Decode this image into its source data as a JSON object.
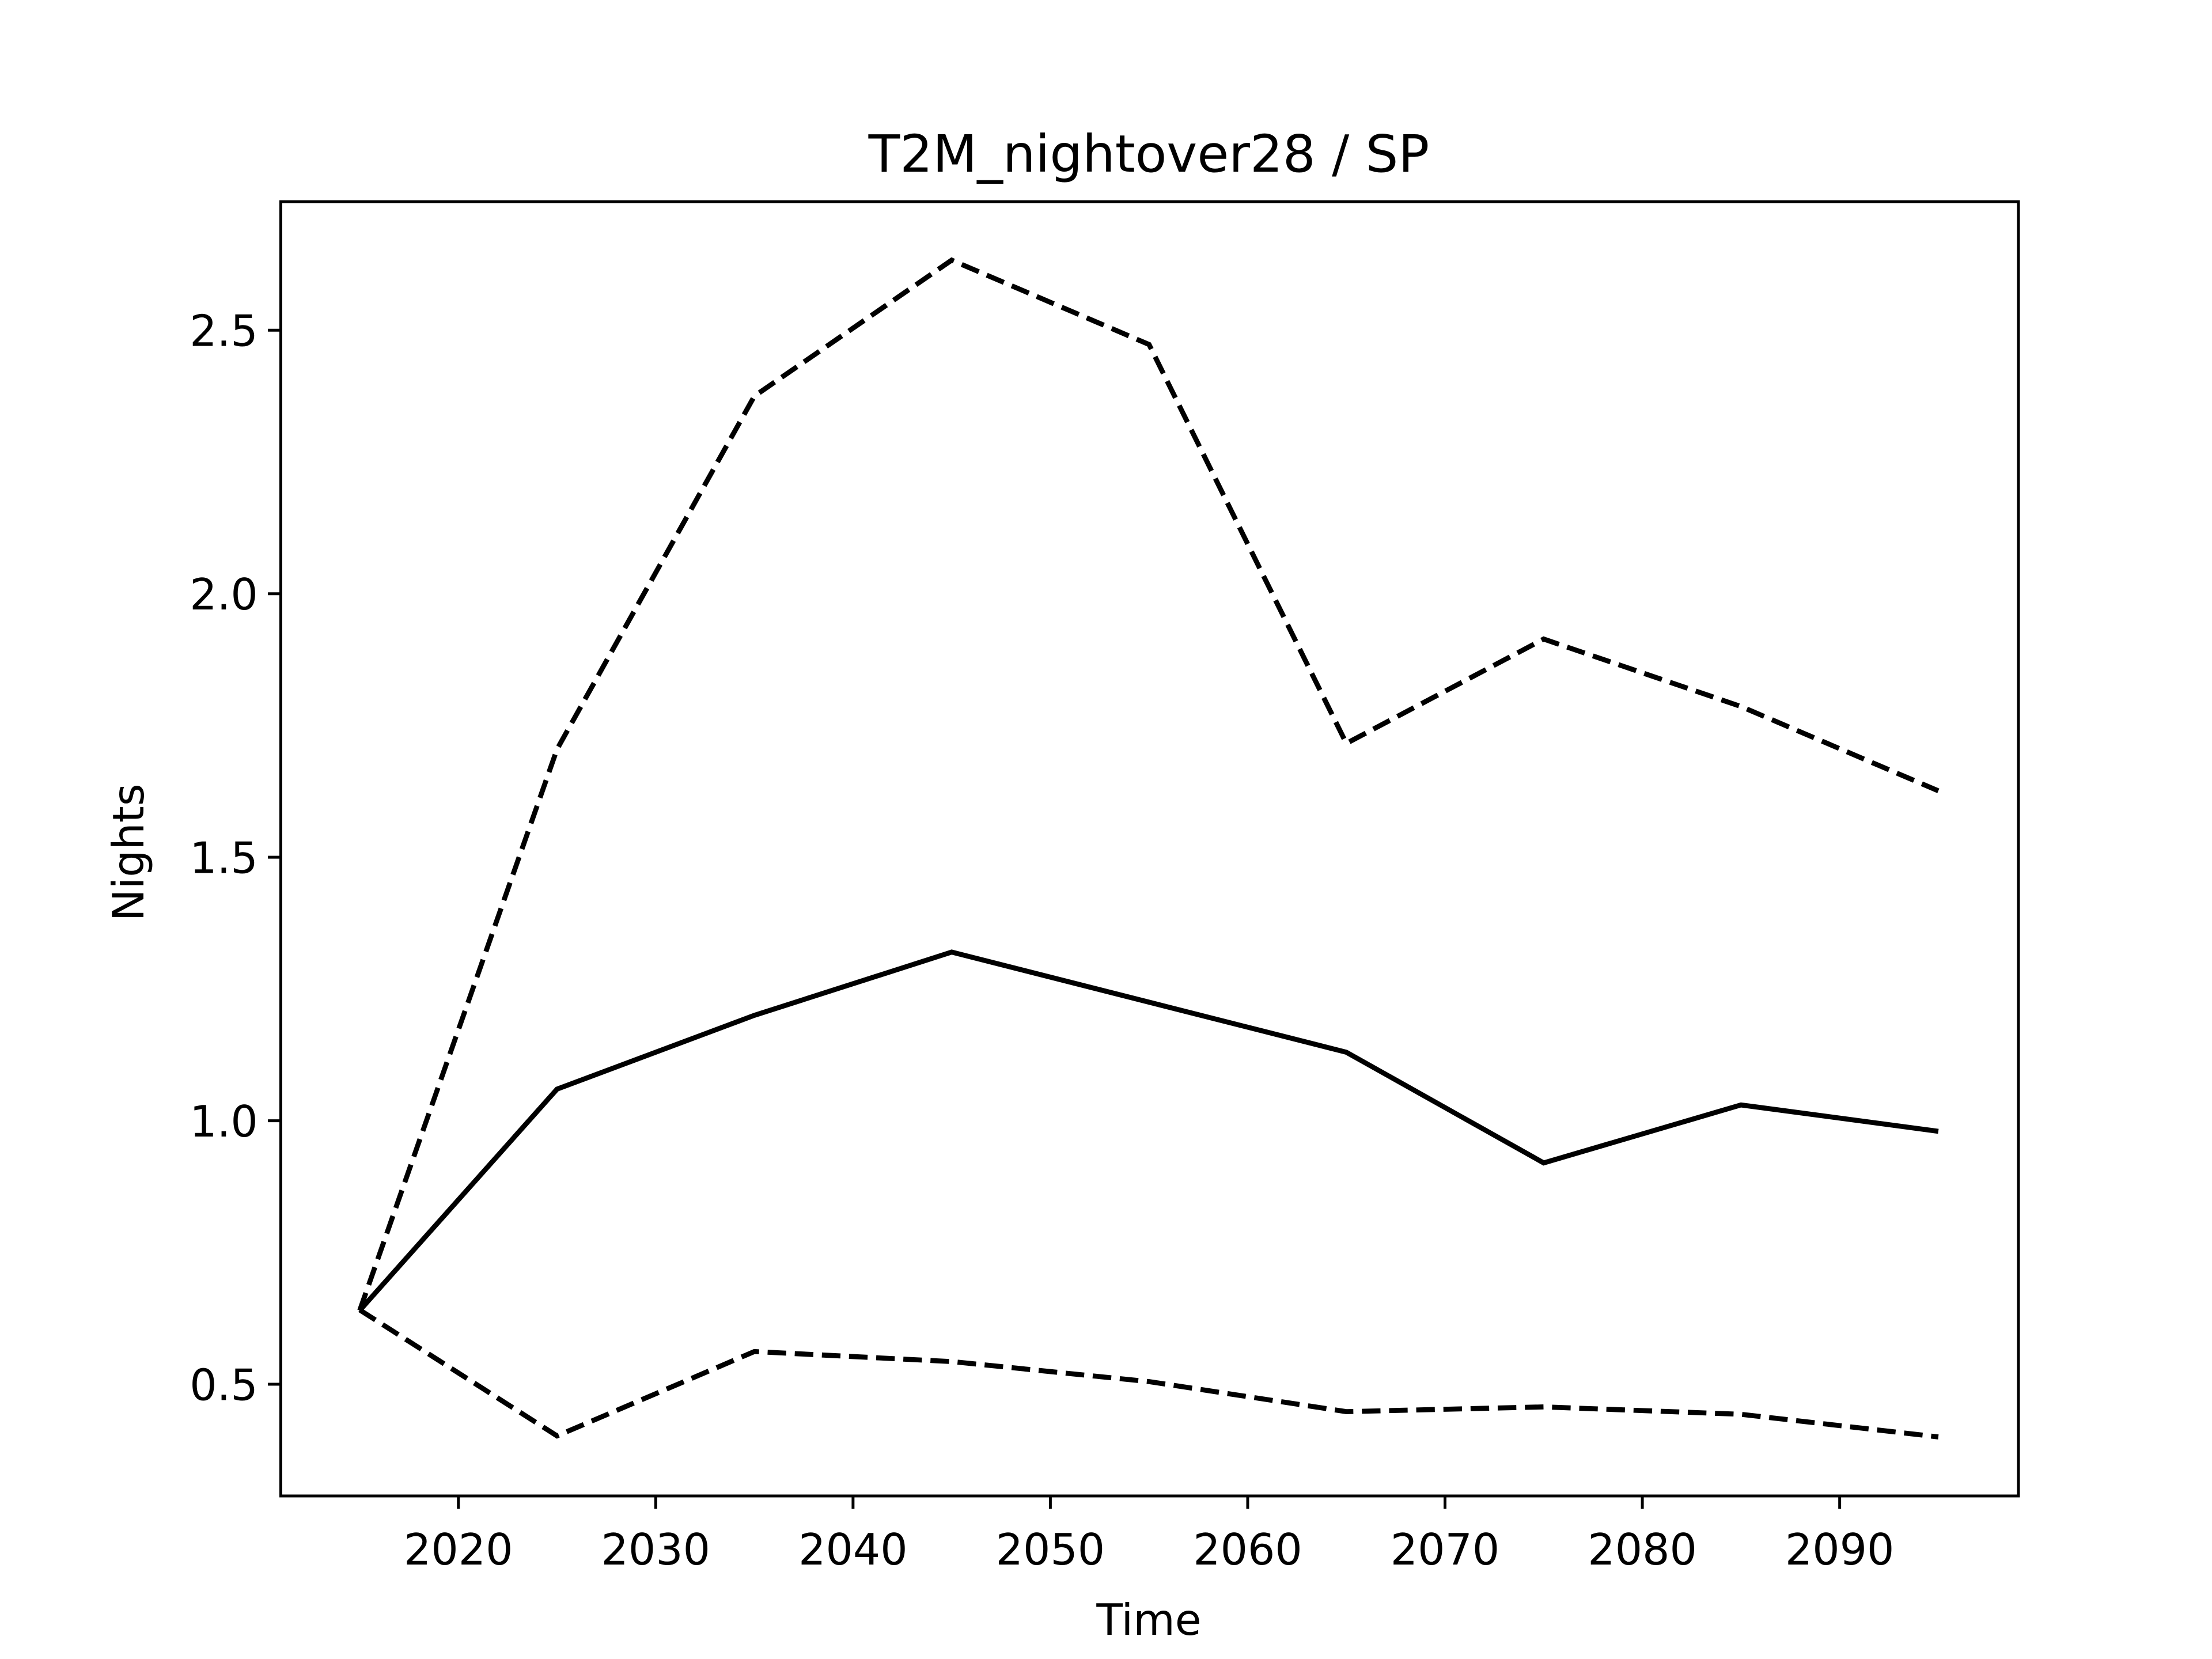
{
  "chart_data": {
    "type": "line",
    "title": "T2M_nightover28 / SP",
    "xlabel": "Time",
    "ylabel": "Nights",
    "x": [
      2015,
      2025,
      2035,
      2045,
      2055,
      2065,
      2075,
      2085,
      2095
    ],
    "series": [
      {
        "color": "#000000",
        "dash": "solid",
        "values": [
          0.64,
          1.06,
          1.2,
          1.32,
          1.225,
          1.13,
          0.92,
          1.03,
          0.98
        ]
      },
      {
        "color": "#000000",
        "dash": "dashed",
        "values": [
          0.64,
          1.705,
          2.375,
          2.633,
          2.473,
          1.716,
          1.914,
          1.786,
          1.626
        ]
      },
      {
        "color": "#000000",
        "dash": "dashed",
        "values": [
          0.641,
          0.402,
          0.562,
          0.543,
          0.505,
          0.448,
          0.457,
          0.443,
          0.4
        ]
      }
    ],
    "xlim": [
      2011,
      2099.06
    ],
    "ylim": [
      0.288,
      2.744
    ],
    "xticks": [
      2020,
      2030,
      2040,
      2050,
      2060,
      2070,
      2080,
      2090
    ],
    "yticks": [
      0.5,
      {
        "value": 1,
        "label": "1.0"
      },
      1.5,
      {
        "value": 2,
        "label": "2.0"
      },
      2.5
    ],
    "grid": false
  }
}
